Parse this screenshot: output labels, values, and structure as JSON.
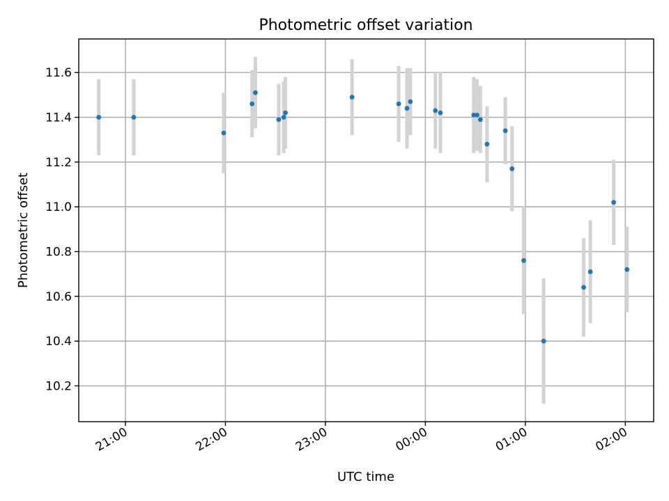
{
  "chart_data": {
    "type": "scatter",
    "title": "Photometric offset variation",
    "xlabel": "UTC time",
    "ylabel": "Photometric offset",
    "x_axis": {
      "kind": "time",
      "range": [
        "20:32",
        "02:17"
      ],
      "ticks": [
        "21:00",
        "22:00",
        "23:00",
        "00:00",
        "01:00",
        "02:00"
      ]
    },
    "y_axis": {
      "range": [
        10.04,
        11.75
      ],
      "ticks": [
        10.2,
        10.4,
        10.6,
        10.8,
        11.0,
        11.2,
        11.4,
        11.6
      ],
      "tick_labels": [
        "10.2",
        "10.4",
        "10.6",
        "10.8",
        "11.0",
        "11.2",
        "11.4",
        "11.6"
      ]
    },
    "grid": true,
    "colors": {
      "points": "#1f77b4",
      "error_bars": "#d3d3d3",
      "grid": "#b0b0b0"
    },
    "points": [
      {
        "t": "20:44",
        "y": 11.4,
        "err": 0.17
      },
      {
        "t": "21:05",
        "y": 11.4,
        "err": 0.17
      },
      {
        "t": "21:59",
        "y": 11.33,
        "err": 0.18
      },
      {
        "t": "22:16",
        "y": 11.46,
        "err": 0.15
      },
      {
        "t": "22:18",
        "y": 11.51,
        "err": 0.16
      },
      {
        "t": "22:32",
        "y": 11.39,
        "err": 0.16
      },
      {
        "t": "22:35",
        "y": 11.4,
        "err": 0.16
      },
      {
        "t": "22:36",
        "y": 11.42,
        "err": 0.16
      },
      {
        "t": "23:16",
        "y": 11.49,
        "err": 0.17
      },
      {
        "t": "23:44",
        "y": 11.46,
        "err": 0.17
      },
      {
        "t": "23:49",
        "y": 11.44,
        "err": 0.18
      },
      {
        "t": "23:51",
        "y": 11.47,
        "err": 0.15
      },
      {
        "t": "00:06",
        "y": 11.43,
        "err": 0.17
      },
      {
        "t": "00:09",
        "y": 11.42,
        "err": 0.18
      },
      {
        "t": "00:29",
        "y": 11.41,
        "err": 0.17
      },
      {
        "t": "00:31",
        "y": 11.41,
        "err": 0.16
      },
      {
        "t": "00:33",
        "y": 11.39,
        "err": 0.15
      },
      {
        "t": "00:37",
        "y": 11.28,
        "err": 0.17
      },
      {
        "t": "00:48",
        "y": 11.34,
        "err": 0.15
      },
      {
        "t": "00:52",
        "y": 11.17,
        "err": 0.19
      },
      {
        "t": "00:59",
        "y": 10.76,
        "err": 0.24
      },
      {
        "t": "01:11",
        "y": 10.4,
        "err": 0.28
      },
      {
        "t": "01:35",
        "y": 10.64,
        "err": 0.22
      },
      {
        "t": "01:39",
        "y": 10.71,
        "err": 0.23
      },
      {
        "t": "01:53",
        "y": 11.02,
        "err": 0.19
      },
      {
        "t": "02:01",
        "y": 10.72,
        "err": 0.19
      }
    ]
  }
}
